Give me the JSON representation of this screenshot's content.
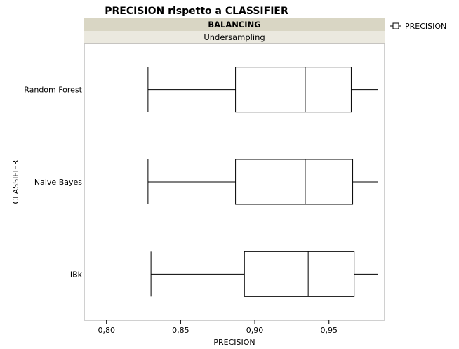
{
  "chart_data": {
    "type": "boxplot",
    "title": "PRECISION rispetto a CLASSIFIER",
    "group_header": "BALANCING",
    "group_value": "Undersampling",
    "xlabel": "PRECISION",
    "ylabel": "CLASSIFIER",
    "xlim": [
      0.785,
      0.9875
    ],
    "xticks": [
      0.8,
      0.85,
      0.9,
      0.95
    ],
    "xtick_labels": [
      "0,80",
      "0,85",
      "0,90",
      "0,95"
    ],
    "legend": {
      "position": "top-right",
      "label": "PRECISION"
    },
    "grid": false,
    "categories": [
      "Random Forest",
      "Naive Bayes",
      "IBk"
    ],
    "boxes": [
      {
        "category": "Random Forest",
        "min": 0.828,
        "q1": 0.887,
        "median": 0.934,
        "q3": 0.965,
        "max": 0.983
      },
      {
        "category": "Naive Bayes",
        "min": 0.828,
        "q1": 0.887,
        "median": 0.934,
        "q3": 0.966,
        "max": 0.983
      },
      {
        "category": "IBk",
        "min": 0.83,
        "q1": 0.893,
        "median": 0.936,
        "q3": 0.967,
        "max": 0.983
      }
    ]
  }
}
